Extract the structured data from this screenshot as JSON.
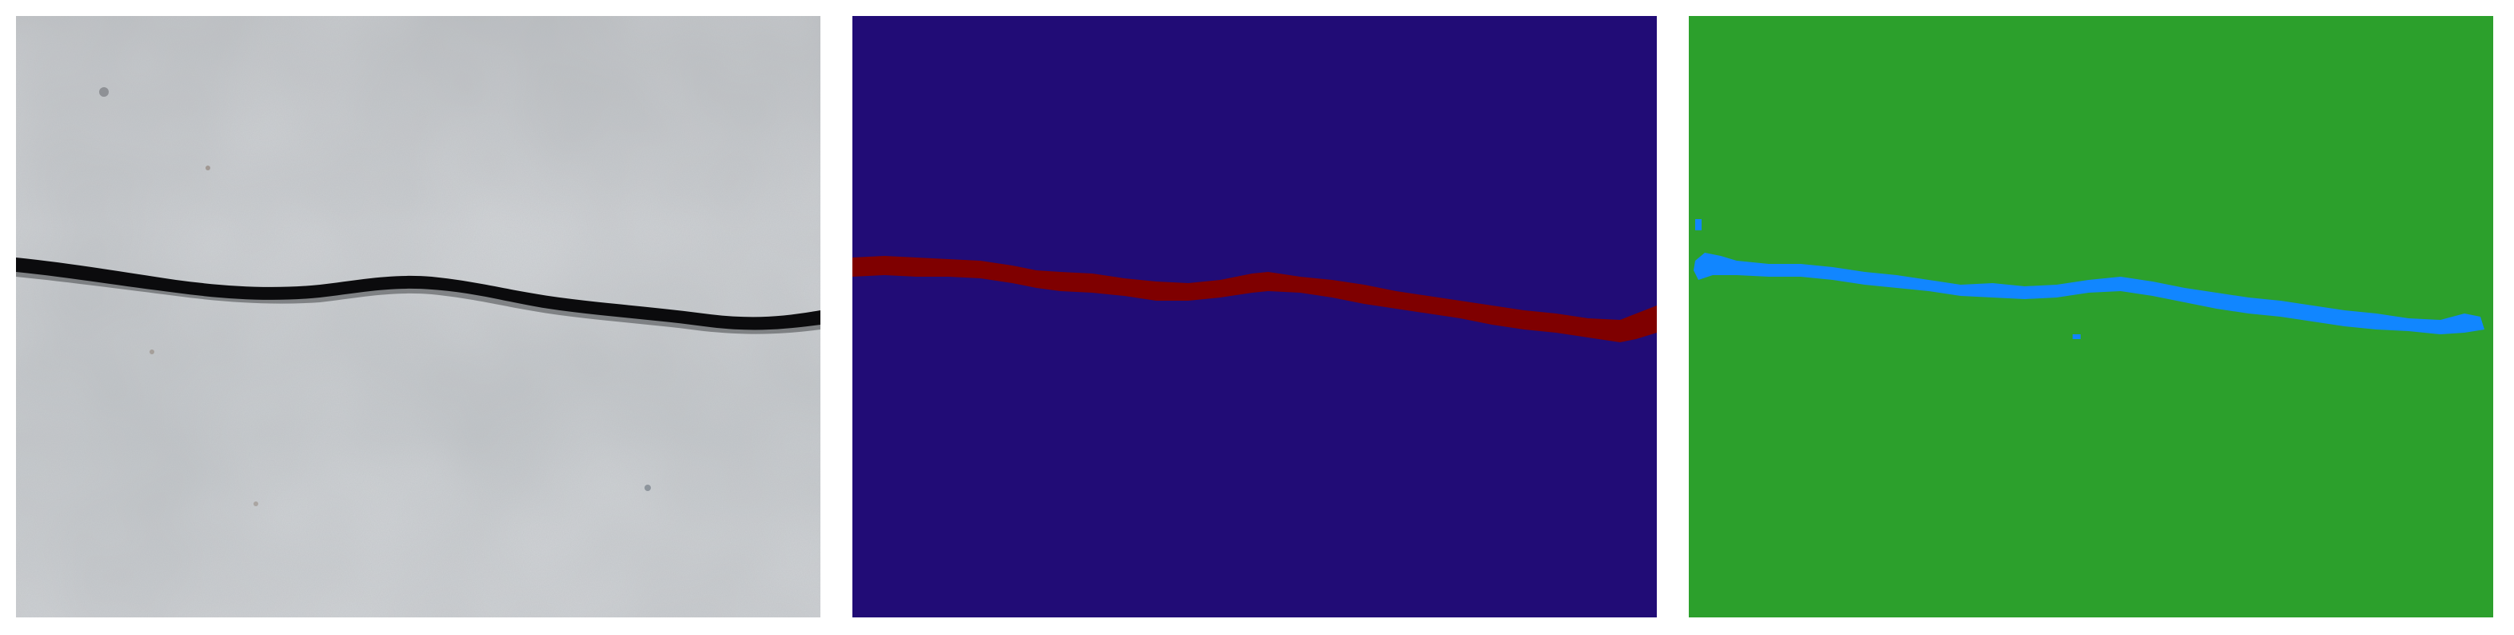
{
  "panels": [
    {
      "id": "photo",
      "kind": "concrete-surface-photo"
    },
    {
      "id": "ground-truth",
      "kind": "segmentation-mask",
      "background_color": "#210c76",
      "crack_color": "#7f0000"
    },
    {
      "id": "prediction",
      "kind": "segmentation-mask",
      "background_color": "#2ca02c",
      "crack_color": "#1186ff"
    }
  ],
  "colors": {
    "page_background": "#ffffff",
    "concrete": "#b8bcbf",
    "crack_dark": "#0b0b0d"
  }
}
